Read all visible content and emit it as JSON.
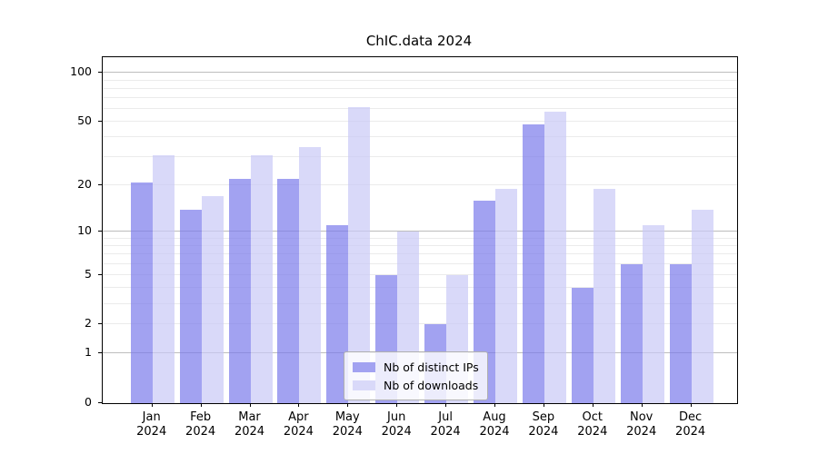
{
  "chart_data": {
    "type": "bar",
    "title": "ChIC.data 2024",
    "categories": [
      "Jan 2024",
      "Feb 2024",
      "Mar 2024",
      "Apr 2024",
      "May 2024",
      "Jun 2024",
      "Jul 2024",
      "Aug 2024",
      "Sep 2024",
      "Oct 2024",
      "Nov 2024",
      "Dec 2024"
    ],
    "series": [
      {
        "name": "Nb of distinct IPs",
        "values": [
          21,
          14,
          22,
          22,
          11,
          5,
          2,
          16,
          48,
          4,
          6,
          6
        ]
      },
      {
        "name": "Nb of downloads",
        "values": [
          31,
          17,
          31,
          35,
          62,
          10,
          5,
          19,
          58,
          19,
          11,
          14
        ]
      }
    ],
    "yscale": "log1p",
    "ylim": [
      0,
      125
    ],
    "yticks_labeled": [
      0,
      1,
      2,
      5,
      10,
      20,
      50,
      100
    ],
    "grid_major": [
      1,
      10,
      100
    ],
    "grid_minor": [
      2,
      3,
      4,
      5,
      6,
      7,
      8,
      9,
      20,
      30,
      40,
      50,
      60,
      70,
      80,
      90
    ],
    "grid": true,
    "legend_position": "lower center",
    "xlabel": "",
    "ylabel": ""
  },
  "colors": {
    "ips_bar": "rgba(122,122,235,0.7)",
    "downloads_bar": "rgba(201,201,247,0.7)",
    "ips_swatch": "#a2a2f1",
    "downloads_swatch": "#d9d9f9",
    "grid_major": "#bdbdbd",
    "grid_minor": "#ebebeb",
    "spine": "#000000"
  }
}
